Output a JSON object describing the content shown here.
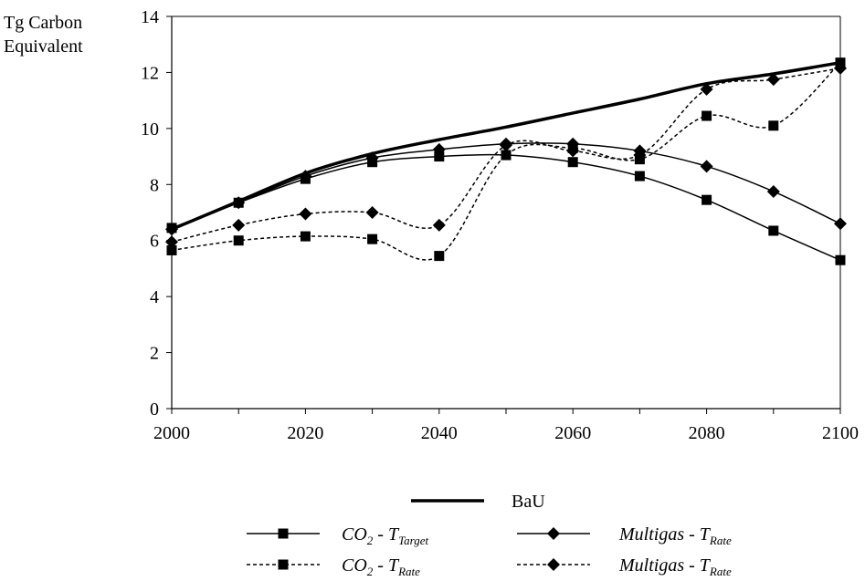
{
  "chart_data": {
    "type": "line",
    "ylabel_lines": [
      "Tg Carbon",
      "Equivalent"
    ],
    "xlabel": "",
    "xlim": [
      2000,
      2100
    ],
    "ylim": [
      0,
      14
    ],
    "xticks": [
      2000,
      2020,
      2040,
      2060,
      2080,
      2100
    ],
    "yticks": [
      0,
      2,
      4,
      6,
      8,
      10,
      12,
      14
    ],
    "grid": false,
    "legend_position": "bottom",
    "series": [
      {
        "name": "BaU",
        "style": "thick-solid",
        "marker": "none",
        "x": [
          2000,
          2010,
          2020,
          2030,
          2040,
          2050,
          2060,
          2070,
          2080,
          2090,
          2100
        ],
        "y": [
          6.4,
          7.4,
          8.4,
          9.1,
          9.6,
          10.05,
          10.55,
          11.05,
          11.6,
          11.95,
          12.35
        ]
      },
      {
        "name": "CO2 - TTarget",
        "name_parts": {
          "main": "CO",
          "main_sub": "2",
          "dash": " - T",
          "sub": "Target"
        },
        "style": "solid",
        "marker": "square",
        "x": [
          2000,
          2010,
          2020,
          2030,
          2040,
          2050,
          2060,
          2070,
          2080,
          2090,
          2100
        ],
        "y": [
          6.45,
          7.35,
          8.2,
          8.8,
          9.0,
          9.05,
          8.8,
          8.3,
          7.45,
          6.35,
          5.3
        ]
      },
      {
        "name": "Multigas - TRate",
        "name_parts": {
          "main": "Multigas",
          "main_sub": "",
          "dash": " - T",
          "sub": "Rate"
        },
        "style": "solid",
        "marker": "diamond",
        "x": [
          2000,
          2010,
          2020,
          2030,
          2040,
          2050,
          2060,
          2070,
          2080,
          2090,
          2100
        ],
        "y": [
          6.4,
          7.35,
          8.3,
          8.95,
          9.25,
          9.45,
          9.45,
          9.2,
          8.65,
          7.75,
          6.6
        ]
      },
      {
        "name": "CO2 - TRate",
        "name_parts": {
          "main": "CO",
          "main_sub": "2",
          "dash": " - T",
          "sub": "Rate"
        },
        "style": "dashed",
        "marker": "square",
        "x": [
          2000,
          2010,
          2020,
          2030,
          2040,
          2050,
          2060,
          2070,
          2080,
          2090,
          2100
        ],
        "y": [
          5.65,
          6.0,
          6.15,
          6.05,
          5.45,
          9.05,
          9.3,
          8.9,
          10.45,
          10.1,
          12.35
        ]
      },
      {
        "name": "Multigas - TRate",
        "name_parts": {
          "main": "Multigas",
          "main_sub": "",
          "dash": " - T",
          "sub": "Rate"
        },
        "style": "dashed",
        "marker": "diamond",
        "x": [
          2000,
          2010,
          2020,
          2030,
          2040,
          2050,
          2060,
          2070,
          2080,
          2090,
          2100
        ],
        "y": [
          5.95,
          6.55,
          6.95,
          7.0,
          6.55,
          9.4,
          9.2,
          9.05,
          11.4,
          11.75,
          12.15
        ]
      }
    ]
  }
}
